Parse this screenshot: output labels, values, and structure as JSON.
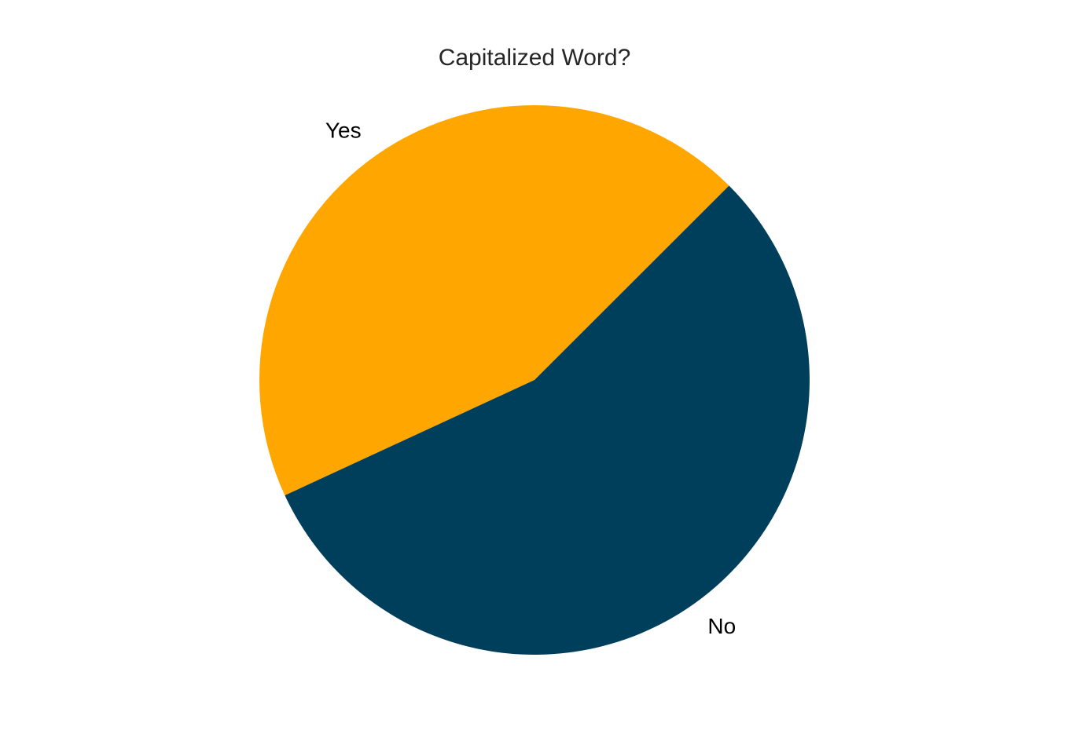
{
  "chart_data": {
    "type": "pie",
    "title": "Capitalized Word?",
    "labels": [
      "Yes",
      "No"
    ],
    "values": [
      44.4,
      55.6
    ],
    "colors": [
      "#ffa600",
      "#003f5c"
    ],
    "start_angle_deg": 45,
    "direction": "counterclockwise",
    "legend": "none"
  }
}
